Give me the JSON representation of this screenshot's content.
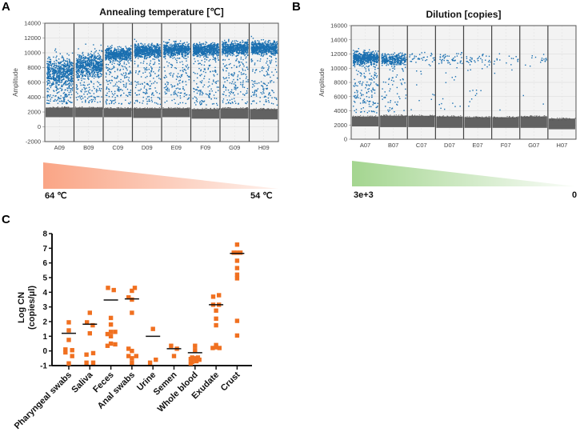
{
  "panels": {
    "a_letter": "A",
    "b_letter": "B",
    "c_letter": "C"
  },
  "gradients": {
    "a": {
      "left_label": "64 ℃",
      "right_label": "54 ℃",
      "color": "#f9a07f"
    },
    "b": {
      "left_label": "3e+3",
      "right_label": "0",
      "color": "#9fd38a"
    }
  },
  "chart_data": [
    {
      "id": "A",
      "type": "scatter",
      "title": "Annealing temperature [℃]",
      "xlabel": "",
      "ylabel": "Amplitude",
      "ylim": [
        -2000,
        14000
      ],
      "yticks": [
        -2000,
        0,
        2000,
        4000,
        6000,
        8000,
        10000,
        12000,
        14000
      ],
      "categories": [
        "A09",
        "B09",
        "C09",
        "D09",
        "E09",
        "F09",
        "G09",
        "H09"
      ],
      "grid": true,
      "colors": {
        "positive": "#1a6fb0",
        "negative": "#5a5a5a"
      },
      "positive_cluster_center": [
        7500,
        8500,
        9900,
        10300,
        10500,
        10500,
        10700,
        10700
      ],
      "negative_band": [
        [
          1300,
          2600
        ],
        [
          1300,
          2600
        ],
        [
          1300,
          2500
        ],
        [
          1200,
          2500
        ],
        [
          1300,
          2500
        ],
        [
          1100,
          2400
        ],
        [
          1100,
          2500
        ],
        [
          1000,
          2400
        ]
      ]
    },
    {
      "id": "B",
      "type": "scatter",
      "title": "Dilution [copies]",
      "xlabel": "",
      "ylabel": "Amplitude",
      "ylim": [
        0,
        16000
      ],
      "yticks": [
        0,
        2000,
        4000,
        6000,
        8000,
        10000,
        12000,
        14000,
        16000
      ],
      "categories": [
        "A07",
        "B07",
        "C07",
        "D07",
        "E07",
        "F07",
        "G07",
        "H07"
      ],
      "grid": true,
      "colors": {
        "positive": "#1a6fb0",
        "negative": "#5a5a5a"
      },
      "positive_cluster_center": [
        11500,
        11300,
        11600,
        11500,
        11400,
        11300,
        11300,
        null
      ],
      "positive_density": [
        1.0,
        0.5,
        0.06,
        0.08,
        0.06,
        0.02,
        0.02,
        0
      ],
      "negative_band": [
        [
          1800,
          3200
        ],
        [
          1700,
          3300
        ],
        [
          1700,
          3300
        ],
        [
          1600,
          3200
        ],
        [
          1600,
          3100
        ],
        [
          1600,
          3100
        ],
        [
          1600,
          3200
        ],
        [
          1400,
          2900
        ]
      ]
    },
    {
      "id": "C",
      "type": "scatter",
      "title": "",
      "xlabel": "",
      "ylabel": "Log CN\n(copies/μl)",
      "ylabel_lines": [
        "Log CN",
        "(copies/μl)"
      ],
      "ylim": [
        -1,
        8
      ],
      "yticks": [
        -1,
        0,
        1,
        2,
        3,
        4,
        5,
        6,
        7,
        8
      ],
      "categories": [
        "Pharyngeal swabs",
        "Saliva",
        "Feces",
        "Anal swabs",
        "Urine",
        "Semen",
        "Whole blood",
        "Exudate",
        "Crust"
      ],
      "marker_color": "#f07020",
      "median_color": "#111111",
      "series": [
        {
          "name": "Pharyngeal swabs",
          "median": 1.2,
          "points": [
            [
              0,
              1.95
            ],
            [
              0,
              1.4
            ],
            [
              0,
              0.75
            ],
            [
              -0.35,
              0.1
            ],
            [
              0.35,
              0.05
            ],
            [
              -0.35,
              -0.1
            ],
            [
              0.35,
              -0.35
            ],
            [
              0,
              -0.85
            ]
          ]
        },
        {
          "name": "Saliva",
          "median": 1.82,
          "points": [
            [
              0,
              2.6
            ],
            [
              -0.3,
              1.95
            ],
            [
              0.3,
              1.75
            ],
            [
              0,
              1.2
            ],
            [
              -0.35,
              -0.25
            ],
            [
              0.35,
              -0.15
            ],
            [
              -0.35,
              -0.8
            ],
            [
              0.35,
              -0.8
            ]
          ]
        },
        {
          "name": "Feces",
          "median": 3.47,
          "points": [
            [
              -0.3,
              4.3
            ],
            [
              0.3,
              4.15
            ],
            [
              0,
              2.25
            ],
            [
              0,
              1.8
            ],
            [
              -0.35,
              1.15
            ],
            [
              0,
              1.3
            ],
            [
              0.45,
              1.3
            ],
            [
              0,
              1.0
            ],
            [
              -0.35,
              0.35
            ],
            [
              0,
              0.5
            ],
            [
              0.45,
              0.45
            ]
          ]
        },
        {
          "name": "Anal swabs",
          "median": 3.55,
          "points": [
            [
              0.3,
              4.3
            ],
            [
              0,
              4.1
            ],
            [
              -0.35,
              3.65
            ],
            [
              0,
              3.5
            ],
            [
              0,
              2.6
            ],
            [
              -0.35,
              0.15
            ],
            [
              0,
              0.0
            ],
            [
              -0.35,
              -0.35
            ],
            [
              0.45,
              -0.35
            ],
            [
              0,
              -0.5
            ],
            [
              0,
              -0.8
            ]
          ]
        },
        {
          "name": "Urine",
          "median": 1.0,
          "points": [
            [
              0,
              1.5
            ],
            [
              -0.3,
              -0.8
            ],
            [
              0.3,
              -0.6
            ]
          ]
        },
        {
          "name": "Semen",
          "median": 0.15,
          "points": [
            [
              -0.3,
              0.35
            ],
            [
              0.3,
              0.15
            ],
            [
              0,
              -0.35
            ]
          ]
        },
        {
          "name": "Whole blood",
          "median": -0.12,
          "points": [
            [
              0,
              0.35
            ],
            [
              0,
              0.05
            ],
            [
              -0.3,
              -0.45
            ],
            [
              0.3,
              -0.45
            ],
            [
              -0.45,
              -0.55
            ],
            [
              0,
              -0.5
            ],
            [
              0.45,
              -0.6
            ],
            [
              -0.3,
              -0.75
            ],
            [
              0.15,
              -0.7
            ],
            [
              -0.45,
              -0.85
            ]
          ]
        },
        {
          "name": "Exudate",
          "median": 3.15,
          "points": [
            [
              -0.3,
              3.7
            ],
            [
              0.3,
              3.8
            ],
            [
              -0.3,
              3.15
            ],
            [
              0.3,
              3.15
            ],
            [
              0,
              2.75
            ],
            [
              0,
              2.2
            ],
            [
              0,
              1.75
            ],
            [
              0,
              0.4
            ],
            [
              -0.35,
              0.2
            ],
            [
              0,
              0.25
            ],
            [
              0.35,
              0.2
            ]
          ]
        },
        {
          "name": "Crust",
          "median": 6.65,
          "points": [
            [
              0,
              7.25
            ],
            [
              -0.35,
              6.7
            ],
            [
              0,
              6.7
            ],
            [
              0.35,
              6.7
            ],
            [
              0,
              6.15
            ],
            [
              0,
              5.65
            ],
            [
              0,
              5.2
            ],
            [
              0,
              4.95
            ],
            [
              0,
              2.05
            ],
            [
              0,
              1.05
            ]
          ]
        }
      ]
    }
  ]
}
